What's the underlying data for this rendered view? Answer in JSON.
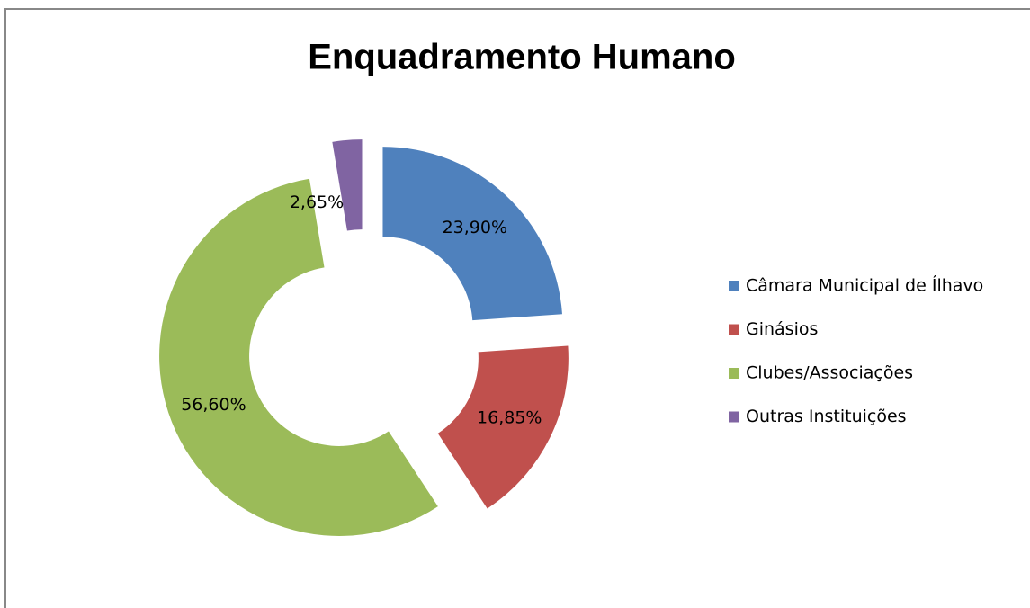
{
  "chart_data": {
    "type": "donut",
    "title": "Enquadramento Humano",
    "categories": [
      "Câmara Municipal de Ílhavo",
      "Ginásios",
      "Clubes/Associações",
      "Outras Instituições"
    ],
    "values": [
      23.9,
      16.85,
      56.6,
      2.65
    ],
    "value_labels": [
      "23,90%",
      "16,85%",
      "56,60%",
      "2,65%"
    ],
    "colors": [
      "#4f81bd",
      "#c0504d",
      "#9bbb59",
      "#8064a2"
    ],
    "legend": "right"
  }
}
